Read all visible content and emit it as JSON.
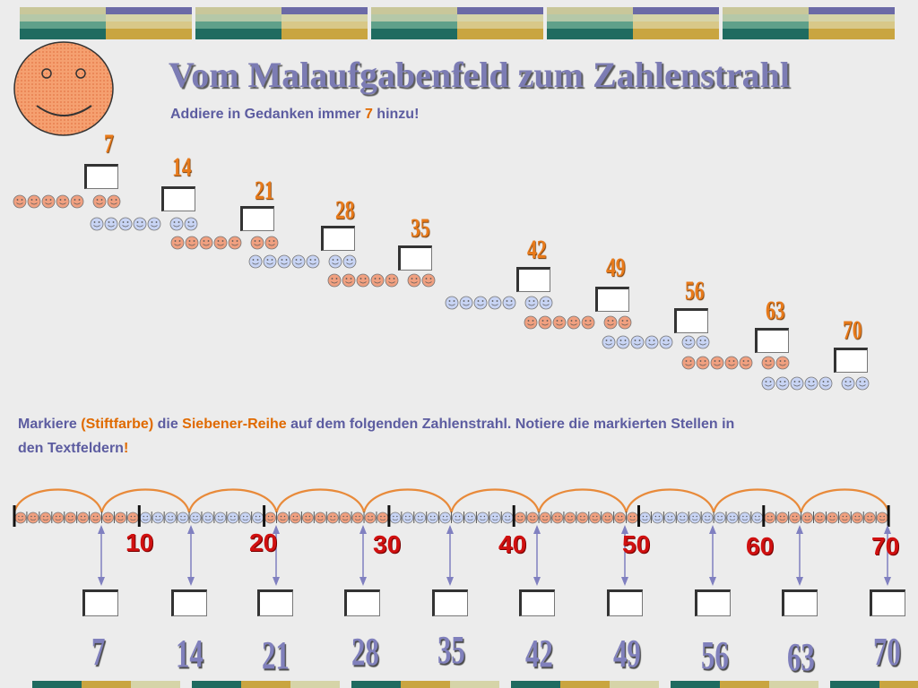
{
  "title": "Vom Malaufgabenfeld zum Zahlenstrahl",
  "subtitle": {
    "prefix": "Addiere in Gedanken immer ",
    "number": "7",
    "suffix": " hinzu!"
  },
  "instruction": {
    "p1": "Markiere ",
    "p2": "(Stiftfarbe)",
    "p3": " die ",
    "p4": "Siebener-Reihe",
    "p5": " auf dem folgenden Zahlenstrahl. Notiere die markierten Stellen in den Textfeldern",
    "p6": "!"
  },
  "staircase": {
    "values": [
      "7",
      "14",
      "21",
      "28",
      "35",
      "42",
      "49",
      "56",
      "63",
      "70"
    ]
  },
  "number_line": {
    "tick_labels": [
      "10",
      "20",
      "30",
      "40",
      "50",
      "60",
      "70"
    ]
  },
  "answer_labels": [
    "7",
    "14",
    "21",
    "28",
    "35",
    "42",
    "49",
    "56",
    "63",
    "70"
  ],
  "colors": {
    "orange_smiley": "#f0a080",
    "blue_smiley": "#c8d4f4",
    "arc": "#e88a3a",
    "arrow": "#8080c0",
    "tick_label": "#d01010"
  }
}
